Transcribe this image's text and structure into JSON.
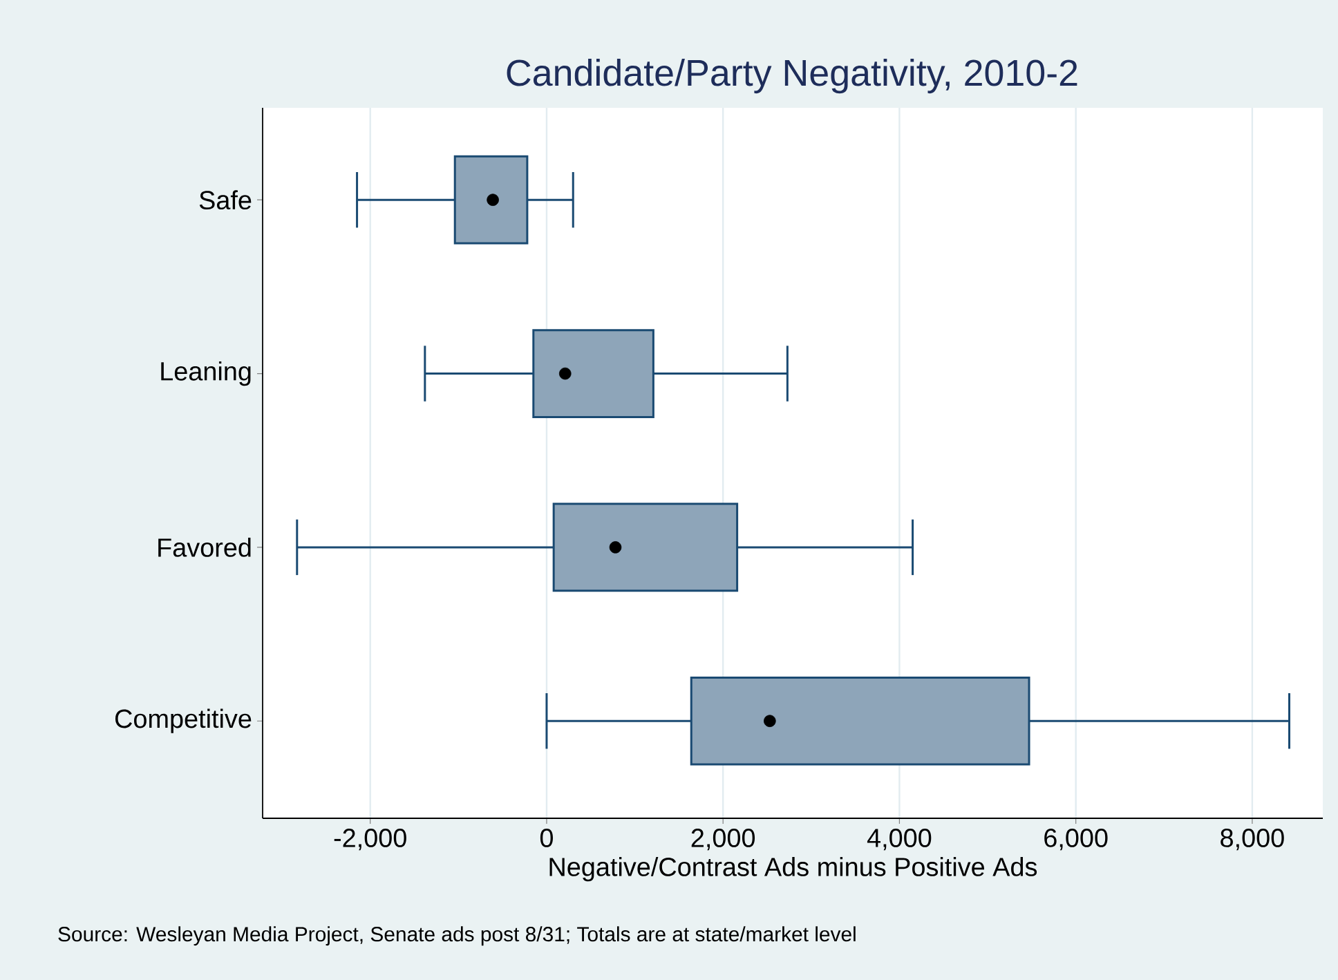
{
  "chart_data": {
    "type": "box",
    "orientation": "horizontal",
    "title": "Candidate/Party Negativity, 2010-2",
    "xlabel": "Negative/Contrast Ads minus Positive Ads",
    "categories": [
      "Safe",
      "Leaning",
      "Favored",
      "Competitive"
    ],
    "boxes": [
      {
        "low": -2150,
        "q1": -1040,
        "median": -610,
        "q3": -220,
        "high": 300
      },
      {
        "low": -1380,
        "q1": -150,
        "median": 210,
        "q3": 1210,
        "high": 2730
      },
      {
        "low": -2830,
        "q1": 80,
        "median": 780,
        "q3": 2160,
        "high": 4150
      },
      {
        "low": 0,
        "q1": 1640,
        "median": 2530,
        "q3": 5470,
        "high": 8420
      }
    ],
    "color": "#8ea5b9",
    "xlim": [
      -3220,
      8800
    ],
    "xticks": [
      {
        "value": -2000,
        "label": "-2,000"
      },
      0,
      {
        "value": 2000,
        "label": "2,000"
      },
      {
        "value": 4000,
        "label": "4,000"
      },
      {
        "value": 6000,
        "label": "6,000"
      },
      {
        "value": 8000,
        "label": "8,000"
      }
    ],
    "grid": "x",
    "annotations": [
      "Source: Wesleyan Media Project, Senate ads post 8/31; Totals are at state/market level"
    ]
  }
}
